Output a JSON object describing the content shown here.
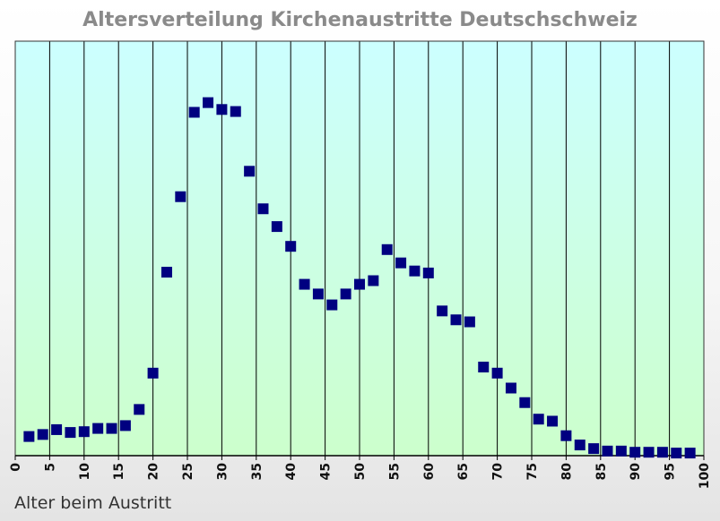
{
  "chart_data": {
    "type": "scatter",
    "title": "Altersverteilung Kirchenaustritte Deutschschweiz",
    "xlabel": "Alter beim Austritt",
    "ylabel": "",
    "xlim": [
      0,
      100
    ],
    "ylim": [
      0,
      100
    ],
    "x_ticks": [
      0,
      5,
      10,
      15,
      20,
      25,
      30,
      35,
      40,
      45,
      50,
      55,
      60,
      65,
      70,
      75,
      80,
      85,
      90,
      95,
      100
    ],
    "y_ticks_shown": false,
    "grid": "vertical",
    "legend": "none",
    "marker": "square",
    "colors": {
      "marker": "#000080",
      "plot_top": "#ccffff",
      "plot_bottom": "#ccffcc",
      "grid": "#000000",
      "title": "#8a8a8a"
    },
    "series": [
      {
        "x": [
          2,
          4,
          6,
          8,
          10,
          12,
          14,
          16,
          18,
          20,
          22,
          24,
          26,
          28,
          30,
          32,
          34,
          36,
          38,
          40,
          42,
          44,
          46,
          48,
          50,
          52,
          54,
          56,
          58,
          60,
          62,
          64,
          66,
          68,
          70,
          72,
          74,
          76,
          78,
          80,
          82,
          84,
          86,
          88,
          90,
          92,
          94,
          96,
          98
        ],
        "y": [
          4.3,
          4.8,
          6.0,
          5.3,
          5.5,
          6.3,
          6.3,
          7.0,
          11.0,
          20.0,
          45.0,
          63.7,
          84.6,
          87.0,
          85.3,
          84.8,
          70.0,
          60.7,
          56.3,
          51.4,
          42.0,
          39.6,
          36.9,
          39.6,
          42.0,
          42.9,
          50.6,
          47.3,
          45.3,
          44.8,
          35.4,
          33.2,
          32.7,
          21.5,
          20.0,
          16.3,
          12.7,
          8.6,
          8.1,
          4.5,
          2.2,
          1.3,
          0.7,
          0.7,
          0.4,
          0.4,
          0.4,
          0.2,
          0.2
        ]
      }
    ]
  }
}
